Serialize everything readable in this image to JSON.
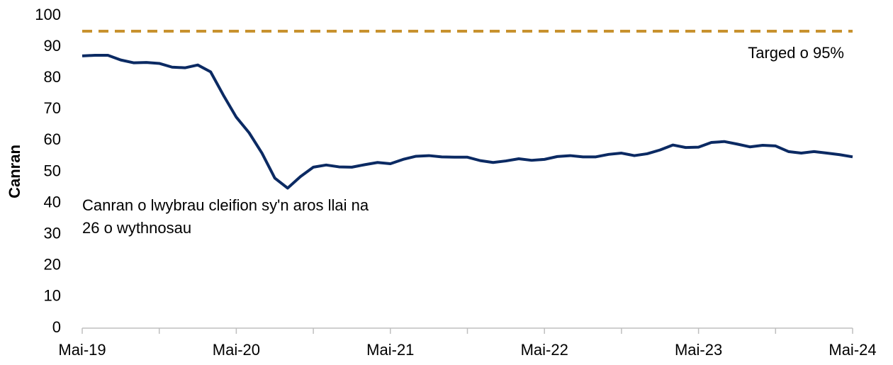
{
  "chart_data": {
    "type": "line",
    "y_label": "Canran",
    "categories": [
      "Mai-19",
      null,
      null,
      null,
      null,
      null,
      null,
      null,
      null,
      null,
      null,
      null,
      "Mai-20",
      null,
      null,
      null,
      null,
      null,
      null,
      null,
      null,
      null,
      null,
      null,
      "Mai-21",
      null,
      null,
      null,
      null,
      null,
      null,
      null,
      null,
      null,
      null,
      null,
      "Mai-22",
      null,
      null,
      null,
      null,
      null,
      null,
      null,
      null,
      null,
      null,
      null,
      "Mai-23",
      null,
      null,
      null,
      null,
      null,
      null,
      null,
      null,
      null,
      null,
      null,
      "Mai-24"
    ],
    "series": [
      {
        "name": "Canran o lwybrau cleifion sy'n aros llai na 26 o wythnosau",
        "color": "#0b2a63",
        "values": [
          87.1,
          87.3,
          87.3,
          85.8,
          84.9,
          85,
          84.7,
          83.5,
          83.3,
          84.2,
          82,
          74.5,
          67.5,
          62.5,
          56,
          48,
          44.8,
          48.5,
          51.5,
          52.2,
          51.6,
          51.5,
          52.3,
          53,
          52.6,
          54,
          55,
          55.2,
          54.8,
          54.7,
          54.7,
          53.6,
          53,
          53.5,
          54.2,
          53.7,
          54,
          54.9,
          55.2,
          54.8,
          54.8,
          55.6,
          56,
          55.2,
          55.8,
          57,
          58.6,
          57.8,
          57.9,
          59.4,
          59.7,
          58.9,
          58,
          58.5,
          58.3,
          56.5,
          56,
          56.5,
          56,
          55.5,
          54.8
        ]
      }
    ],
    "target": {
      "value": 95,
      "label": "Targed o 95%",
      "color": "#c8922f"
    },
    "ylim": [
      0,
      100
    ],
    "yticks": [
      0,
      10,
      20,
      30,
      40,
      50,
      60,
      70,
      80,
      90,
      100
    ],
    "grid": false
  }
}
